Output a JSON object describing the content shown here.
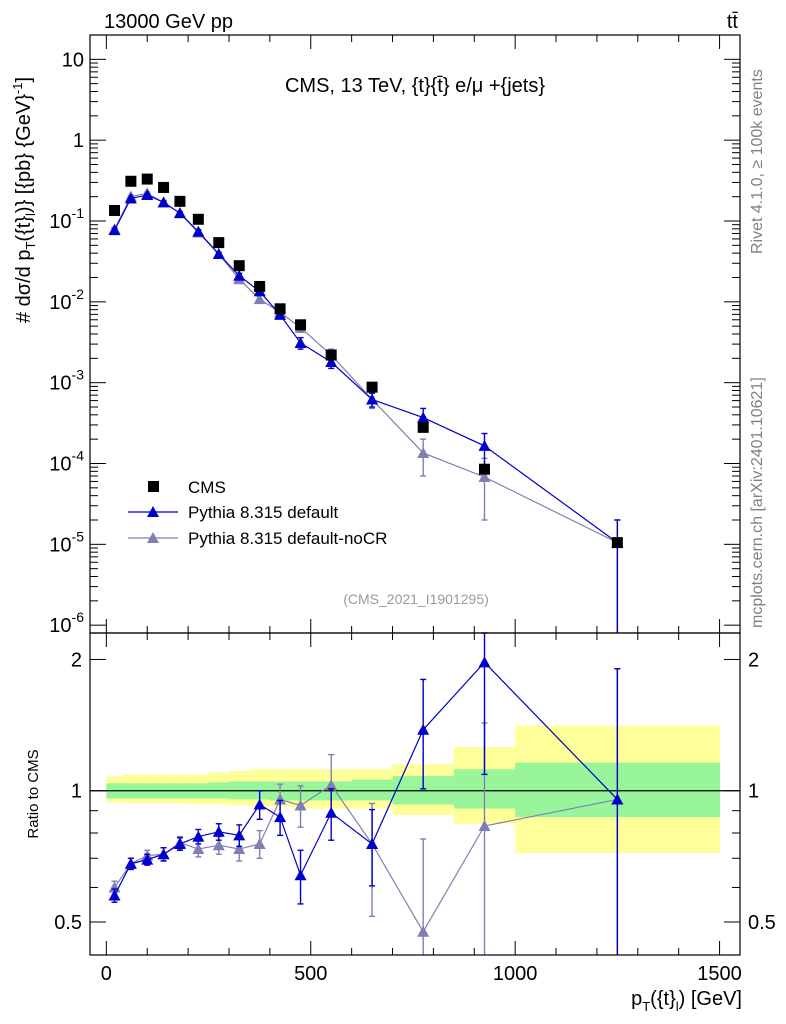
{
  "header": {
    "energy_label": "13000 GeV pp",
    "process_label": "tt̄",
    "plot_title": "CMS, 13 TeV, {t}{t̄} e/μ +{jets}",
    "analysis_id": "(CMS_2021_I1901295)"
  },
  "side_labels": {
    "rivet": "Rivet 4.1.0, ≥ 100k events",
    "mcplots": "mcplots.cern.ch [arXiv:2401.10621]"
  },
  "colors": {
    "data": "#000000",
    "default": "#0000cc",
    "nocr": "#7f7fb2",
    "band_inner": "#99f599",
    "band_outer": "#ffff99"
  },
  "chart_data": [
    {
      "type": "scatter",
      "title": "CMS, 13 TeV, {t}{t̄} e/μ +{jets}",
      "xlabel": "p_T({t}_l) [GeV]",
      "ylabel": "#dσ/dp_T({t}_l) [{pb} {GeV}^-1]",
      "yscale": "log",
      "xlim": [
        -40,
        1550
      ],
      "ylim": [
        8e-07,
        20
      ],
      "y_ticks": [
        "10^-6",
        "10^-5",
        "10^-4",
        "10^-3",
        "10^-2",
        "10^-1",
        "1",
        "10"
      ],
      "x": [
        20,
        60,
        100,
        140,
        180,
        225,
        275,
        325,
        375,
        425,
        475,
        550,
        650,
        775,
        925,
        1250
      ],
      "series": [
        {
          "name": "CMS",
          "marker": "square",
          "values": [
            0.135,
            0.31,
            0.33,
            0.26,
            0.175,
            0.105,
            0.054,
            0.028,
            0.0155,
            0.0082,
            0.0052,
            0.0022,
            0.00088,
            0.00028,
            8.5e-05,
            1.05e-05
          ]
        },
        {
          "name": "Pythia 8.315 default",
          "marker": "triangle",
          "values": [
            0.077,
            0.19,
            0.21,
            0.17,
            0.125,
            0.074,
            0.039,
            0.021,
            0.0135,
            0.0069,
            0.0031,
            0.0018,
            0.00062,
            0.00037,
            0.000165,
            1.05e-05
          ],
          "err_lo": [
            0.004,
            0.008,
            0.008,
            0.007,
            0.005,
            0.004,
            0.002,
            0.0015,
            0.0012,
            0.0007,
            0.0005,
            0.0003,
            0.00012,
            0.00011,
            7e-05,
            1.05e-05
          ],
          "err_hi": [
            0.004,
            0.008,
            0.008,
            0.007,
            0.005,
            0.004,
            0.002,
            0.0015,
            0.0012,
            0.0007,
            0.0005,
            0.0003,
            0.00012,
            0.00011,
            7e-05,
            9.5e-06
          ]
        },
        {
          "name": "Pythia 8.315 default-noCR",
          "marker": "triangle",
          "values": [
            0.079,
            0.2,
            0.22,
            0.17,
            0.125,
            0.072,
            0.039,
            0.019,
            0.0108,
            0.0074,
            0.0048,
            0.0022,
            0.00062,
            0.000135,
            6.8e-05,
            1.05e-05
          ],
          "err_lo": [
            0.004,
            0.008,
            0.008,
            0.007,
            0.005,
            0.004,
            0.002,
            0.0015,
            0.0012,
            0.0008,
            0.0006,
            0.0004,
            0.00014,
            6.5e-05,
            4.8e-05,
            1.05e-05
          ],
          "err_hi": [
            0.004,
            0.008,
            0.008,
            0.007,
            0.005,
            0.004,
            0.002,
            0.0015,
            0.0012,
            0.0008,
            0.0006,
            0.0004,
            0.00014,
            6.5e-05,
            4.8e-05,
            9.5e-06
          ]
        }
      ],
      "legend": [
        "CMS",
        "Pythia 8.315 default",
        "Pythia 8.315 default-noCR"
      ],
      "legend_position": "bottom-left"
    },
    {
      "type": "line",
      "xlabel": "p_T({t}_l) [GeV]",
      "ylabel": "Ratio to CMS",
      "yscale": "log",
      "xlim": [
        -40,
        1550
      ],
      "ylim": [
        0.42,
        2.3
      ],
      "y_ticks": [
        "0.5",
        "1",
        "2"
      ],
      "x_ticks": [
        "0",
        "500",
        "1000",
        "1500"
      ],
      "reference_line": 1,
      "bands": {
        "bin_edges": [
          0,
          40,
          80,
          120,
          160,
          200,
          250,
          300,
          350,
          400,
          450,
          500,
          600,
          700,
          850,
          1000,
          1500
        ],
        "inner_lo": [
          0.96,
          0.96,
          0.96,
          0.96,
          0.96,
          0.96,
          0.96,
          0.955,
          0.955,
          0.95,
          0.95,
          0.95,
          0.95,
          0.93,
          0.91,
          0.87
        ],
        "inner_hi": [
          1.04,
          1.04,
          1.04,
          1.04,
          1.04,
          1.04,
          1.045,
          1.05,
          1.05,
          1.05,
          1.05,
          1.05,
          1.06,
          1.08,
          1.12,
          1.16
        ],
        "outer_lo": [
          0.94,
          0.935,
          0.935,
          0.935,
          0.935,
          0.93,
          0.93,
          0.925,
          0.92,
          0.92,
          0.915,
          0.91,
          0.91,
          0.88,
          0.84,
          0.72
        ],
        "outer_hi": [
          1.08,
          1.09,
          1.09,
          1.09,
          1.09,
          1.09,
          1.1,
          1.11,
          1.12,
          1.12,
          1.12,
          1.12,
          1.12,
          1.15,
          1.26,
          1.41
        ]
      },
      "x": [
        20,
        60,
        100,
        140,
        180,
        225,
        275,
        325,
        375,
        425,
        475,
        550,
        650,
        775,
        925,
        1250
      ],
      "series": [
        {
          "name": "Pythia 8.315 default",
          "values": [
            0.575,
            0.68,
            0.695,
            0.715,
            0.755,
            0.785,
            0.805,
            0.79,
            0.93,
            0.87,
            0.64,
            0.89,
            0.755,
            1.38,
            1.97,
            0.955
          ],
          "err_lo": [
            0.02,
            0.02,
            0.02,
            0.025,
            0.025,
            0.03,
            0.035,
            0.045,
            0.07,
            0.08,
            0.09,
            0.12,
            0.15,
            0.37,
            0.88,
            0.955
          ],
          "err_hi": [
            0.02,
            0.02,
            0.02,
            0.025,
            0.025,
            0.03,
            0.035,
            0.045,
            0.07,
            0.08,
            0.09,
            0.12,
            0.15,
            0.42,
            0.95,
            0.95
          ]
        },
        {
          "name": "Pythia 8.315 default-noCR",
          "values": [
            0.6,
            0.68,
            0.71,
            0.715,
            0.76,
            0.735,
            0.75,
            0.735,
            0.755,
            0.955,
            0.925,
            1.03,
            0.755,
            0.475,
            0.83,
            0.955
          ],
          "err_lo": [
            0.02,
            0.02,
            0.02,
            0.025,
            0.025,
            0.03,
            0.035,
            0.045,
            0.055,
            0.08,
            0.1,
            0.15,
            0.24,
            0.23,
            0.6,
            0.955
          ],
          "err_hi": [
            0.02,
            0.02,
            0.02,
            0.025,
            0.025,
            0.03,
            0.035,
            0.045,
            0.055,
            0.08,
            0.1,
            0.18,
            0.18,
            0.3,
            0.6,
            0.95
          ]
        }
      ]
    }
  ]
}
